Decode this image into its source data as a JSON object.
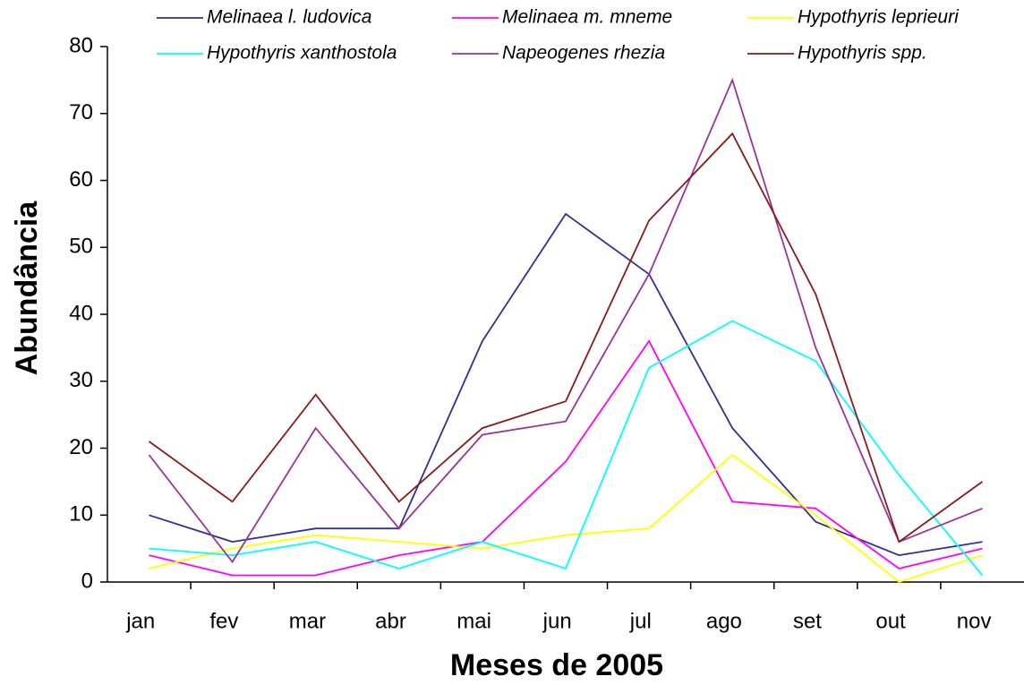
{
  "chart_data": {
    "type": "line",
    "xlabel": "Meses de 2005",
    "ylabel": "Abundância",
    "categories": [
      "jan",
      "fev",
      "mar",
      "abr",
      "mai",
      "jun",
      "jul",
      "ago",
      "set",
      "out",
      "nov"
    ],
    "series": [
      {
        "name": "Melinaea l. ludovica",
        "color": "#2e3192",
        "values": [
          10,
          6,
          8,
          8,
          36,
          55,
          46,
          23,
          9,
          4,
          6
        ]
      },
      {
        "name": "Melinaea m. mneme",
        "color": "#ff00ff",
        "values": [
          4,
          1,
          1,
          4,
          6,
          18,
          36,
          12,
          11,
          2,
          5
        ]
      },
      {
        "name": "Hypothyris leprieuri",
        "color": "#ffff00",
        "values": [
          2,
          5,
          7,
          6,
          5,
          7,
          8,
          19,
          10,
          0,
          4
        ]
      },
      {
        "name": "Hypothyris xanthostola",
        "color": "#00ffff",
        "values": [
          5,
          4,
          6,
          2,
          6,
          2,
          32,
          39,
          33,
          16,
          1
        ]
      },
      {
        "name": "Napeogenes rhezia",
        "color": "#993399",
        "values": [
          19,
          3,
          23,
          8,
          22,
          24,
          46,
          75,
          35,
          6,
          11
        ]
      },
      {
        "name": "Hypothyris spp.",
        "color": "#8b1a1a",
        "values": [
          21,
          12,
          28,
          12,
          23,
          27,
          54,
          67,
          43,
          6,
          15
        ]
      }
    ],
    "ylim": [
      0,
      80
    ],
    "yticks": [
      0,
      10,
      20,
      30,
      40,
      50,
      60,
      70,
      80
    ],
    "grid": false
  }
}
